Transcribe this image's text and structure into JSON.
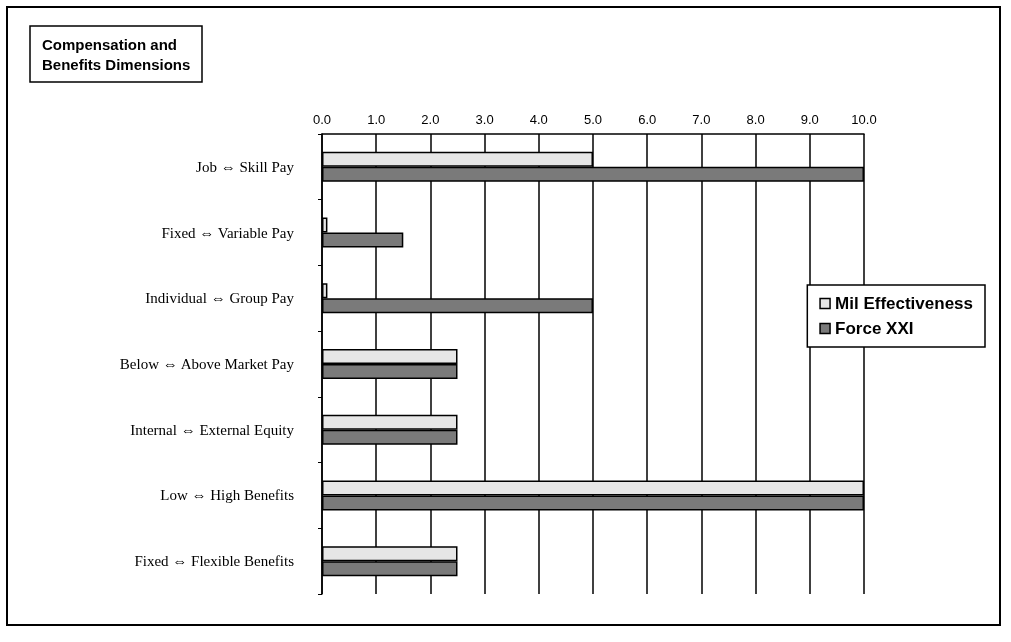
{
  "chart_data": {
    "type": "bar",
    "orientation": "horizontal",
    "title": "Compensation and\nBenefits Dimensions",
    "categories": [
      "Job ⇔ Skill Pay",
      "Fixed ⇔ Variable Pay",
      "Individual ⇔ Group Pay",
      "Below ⇔ Above Market Pay",
      "Internal ⇔ External Equity",
      "Low ⇔ High Benefits",
      "Fixed ⇔ Flexible Benefits"
    ],
    "series": [
      {
        "name": "Mil Effectiveness",
        "color": "#e6e6e6",
        "values": [
          5,
          0.1,
          0.1,
          2.5,
          2.5,
          10,
          2.5
        ]
      },
      {
        "name": "Force XXI",
        "color": "#7a7a7a",
        "values": [
          10,
          1.5,
          5,
          2.5,
          2.5,
          10,
          2.5
        ]
      }
    ],
    "xlim": [
      0,
      10
    ],
    "xticks": [
      {
        "value": 0,
        "label": "0.0"
      },
      {
        "value": 1,
        "label": "1.0"
      },
      {
        "value": 2,
        "label": "2.0"
      },
      {
        "value": 3,
        "label": "3.0"
      },
      {
        "value": 4,
        "label": "4.0"
      },
      {
        "value": 5,
        "label": "5.0"
      },
      {
        "value": 6,
        "label": "6.0"
      },
      {
        "value": 7,
        "label": "7.0"
      },
      {
        "value": 8,
        "label": "8.0"
      },
      {
        "value": 9,
        "label": "9.0"
      },
      {
        "value": 10,
        "label": "10.0"
      }
    ],
    "grid": "x",
    "legend": "right"
  }
}
